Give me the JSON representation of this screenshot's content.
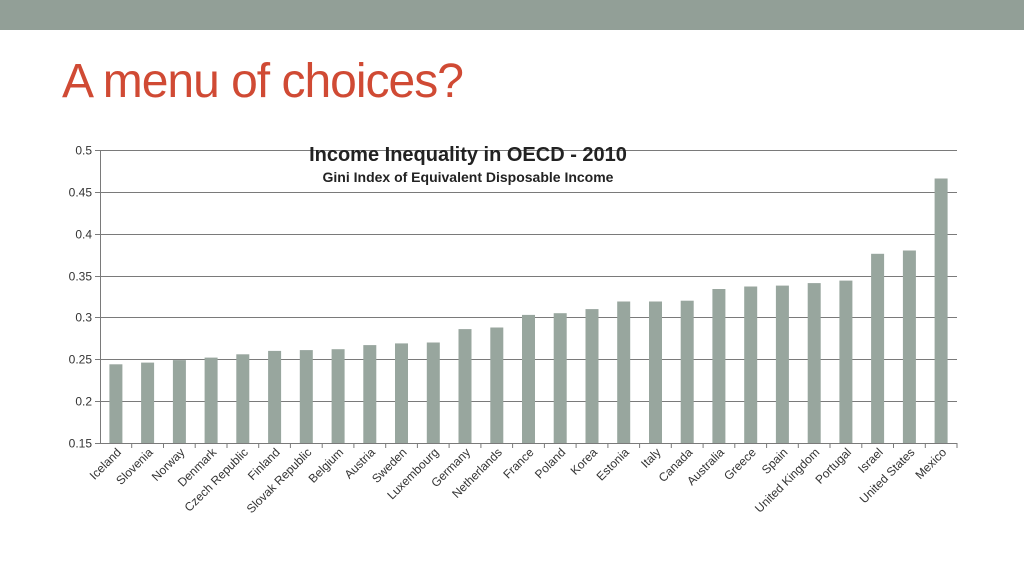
{
  "slide": {
    "title": "A menu of choices?",
    "title_color": "#D04A34",
    "top_bar_color": "#929F97"
  },
  "chart_data": {
    "type": "bar",
    "title": "Income Inequality in OECD - 2010",
    "subtitle": "Gini Index of Equivalent Disposable Income",
    "xlabel": "",
    "ylabel": "",
    "ylim": [
      0.15,
      0.5
    ],
    "yticks": [
      0.15,
      0.2,
      0.25,
      0.3,
      0.35,
      0.4,
      0.45,
      0.5
    ],
    "ytick_labels": [
      "0.15",
      "0.2",
      "0.25",
      "0.3",
      "0.35",
      "0.4",
      "0.45",
      "0.5"
    ],
    "grid": true,
    "legend": "none",
    "bar_color": "#98A69E",
    "categories": [
      "Iceland",
      "Slovenia",
      "Norway",
      "Denmark",
      "Czech Republic",
      "Finland",
      "Slovak Republic",
      "Belgium",
      "Austria",
      "Sweden",
      "Luxembourg",
      "Germany",
      "Netherlands",
      "France",
      "Poland",
      "Korea",
      "Estonia",
      "Italy",
      "Canada",
      "Australia",
      "Greece",
      "Spain",
      "United Kingdom",
      "Portugal",
      "Israel",
      "United States",
      "Mexico"
    ],
    "values": [
      0.244,
      0.246,
      0.249,
      0.252,
      0.256,
      0.26,
      0.261,
      0.262,
      0.267,
      0.269,
      0.27,
      0.286,
      0.288,
      0.303,
      0.305,
      0.31,
      0.319,
      0.319,
      0.32,
      0.334,
      0.337,
      0.338,
      0.341,
      0.344,
      0.376,
      0.38,
      0.466
    ]
  }
}
